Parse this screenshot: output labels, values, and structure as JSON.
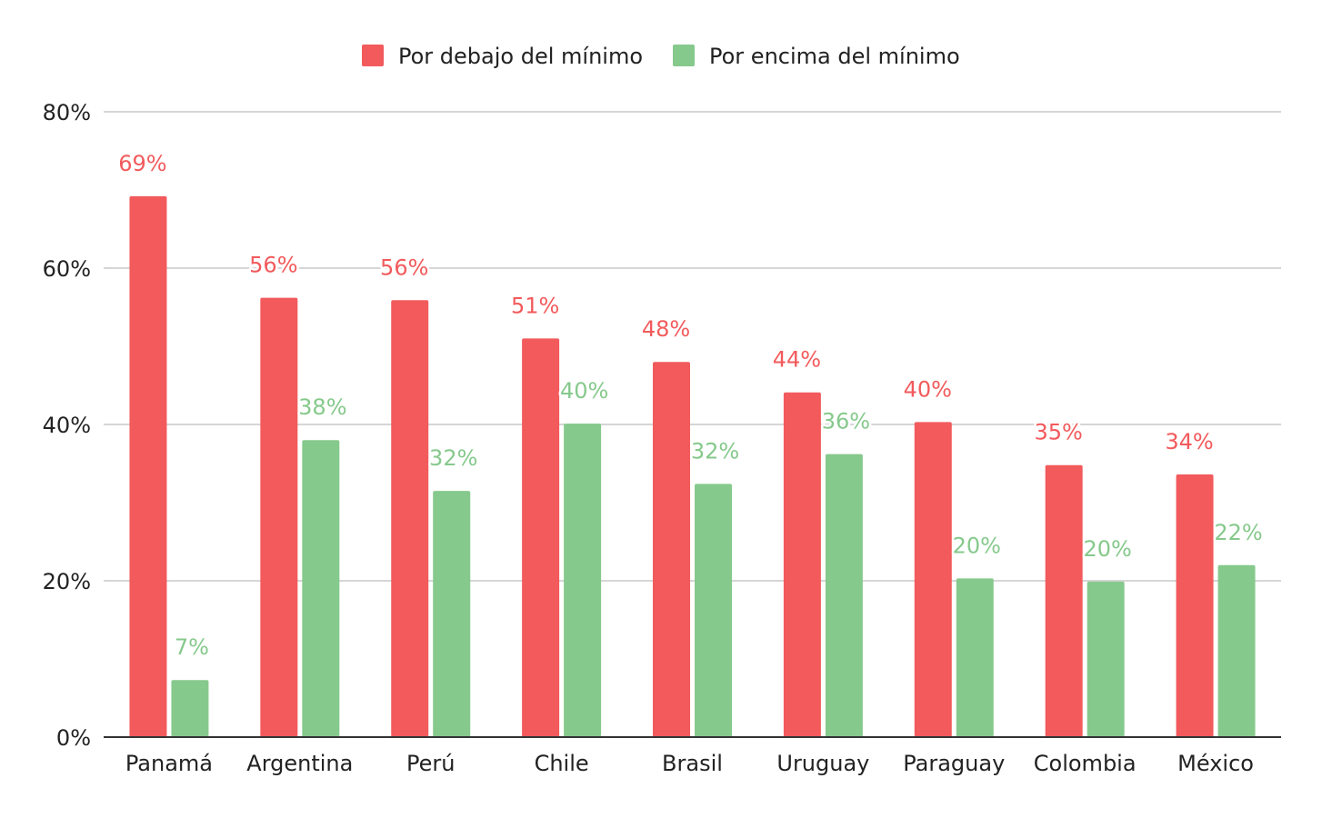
{
  "chart_data": {
    "type": "bar",
    "categories": [
      "Panamá",
      "Argentina",
      "Perú",
      "Chile",
      "Brasil",
      "Uruguay",
      "Paraguay",
      "Colombia",
      "México"
    ],
    "series": [
      {
        "name": "Por debajo del mínimo",
        "color": "#f25a5c",
        "values": [
          69.2,
          56.2,
          55.9,
          51.0,
          48.0,
          44.1,
          40.3,
          34.8,
          33.6
        ],
        "labels": [
          "69%",
          "56%",
          "56%",
          "51%",
          "48%",
          "44%",
          "40%",
          "35%",
          "34%"
        ]
      },
      {
        "name": "Por encima del mínimo",
        "color": "#86c98c",
        "values": [
          7.3,
          38.0,
          31.5,
          40.1,
          32.4,
          36.2,
          20.3,
          19.9,
          22.0
        ],
        "labels": [
          "7%",
          "38%",
          "32%",
          "40%",
          "32%",
          "36%",
          "20%",
          "20%",
          "22%"
        ]
      }
    ],
    "ylim": [
      0,
      80
    ],
    "yticks": [
      0,
      20,
      40,
      60,
      80
    ],
    "ytick_labels": [
      "0%",
      "20%",
      "40%",
      "60%",
      "80%"
    ],
    "grid": true,
    "legend_position": "top-center"
  }
}
